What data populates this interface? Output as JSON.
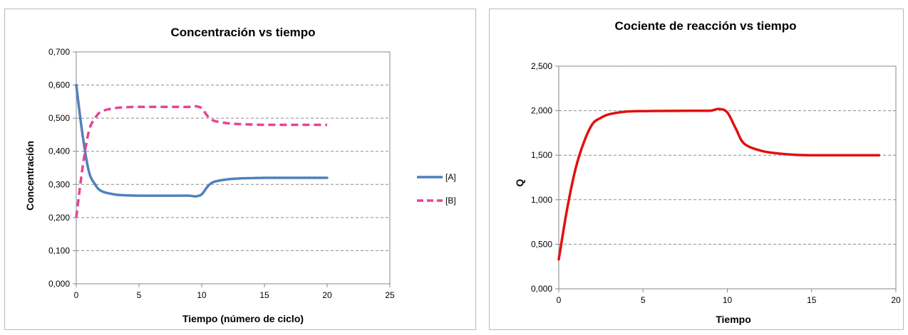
{
  "chart_data": [
    {
      "type": "line",
      "title": "Concentración vs tiempo",
      "xlabel": "Tiempo (número de ciclo)",
      "ylabel": "Concentración",
      "xlim": [
        0,
        25
      ],
      "ylim": [
        0,
        0.7
      ],
      "x_ticks": [
        "0",
        "5",
        "10",
        "15",
        "20",
        "25"
      ],
      "y_ticks": [
        "0,000",
        "0,100",
        "0,200",
        "0,300",
        "0,400",
        "0,500",
        "0,600",
        "0,700"
      ],
      "grid": "horizontal",
      "legend": "right",
      "series": [
        {
          "name": "[A]",
          "color": "#4f81bd",
          "style": "solid",
          "x": [
            0,
            0.5,
            1,
            1.5,
            2,
            3,
            4,
            5,
            6,
            7,
            8,
            9,
            9.5,
            10,
            10.5,
            11,
            12,
            13,
            14,
            15,
            16,
            17,
            18,
            19,
            20
          ],
          "y": [
            0.6,
            0.45,
            0.34,
            0.3,
            0.28,
            0.27,
            0.267,
            0.266,
            0.266,
            0.266,
            0.266,
            0.266,
            0.264,
            0.27,
            0.295,
            0.308,
            0.315,
            0.318,
            0.319,
            0.32,
            0.32,
            0.32,
            0.32,
            0.32,
            0.32
          ]
        },
        {
          "name": "[B]",
          "color": "#e84393",
          "style": "dashed",
          "x": [
            0,
            0.5,
            1,
            1.5,
            2,
            3,
            4,
            5,
            6,
            7,
            8,
            9,
            9.5,
            10,
            10.5,
            11,
            12,
            13,
            14,
            15,
            16,
            17,
            18,
            19,
            20
          ],
          "y": [
            0.2,
            0.35,
            0.46,
            0.5,
            0.52,
            0.53,
            0.533,
            0.534,
            0.534,
            0.534,
            0.534,
            0.534,
            0.536,
            0.53,
            0.505,
            0.492,
            0.485,
            0.482,
            0.481,
            0.48,
            0.48,
            0.48,
            0.48,
            0.48,
            0.48
          ]
        }
      ]
    },
    {
      "type": "line",
      "title": "Cociente de reacción vs tiempo",
      "xlabel": "Tiempo",
      "ylabel": "Q",
      "xlim": [
        0,
        20
      ],
      "ylim": [
        0,
        2.5
      ],
      "x_ticks": [
        "0",
        "5",
        "10",
        "15",
        "20"
      ],
      "y_ticks": [
        "0,000",
        "0,500",
        "1,000",
        "1,500",
        "2,000",
        "2,500"
      ],
      "grid": "horizontal",
      "legend": "none",
      "series": [
        {
          "color": "#e01010",
          "style": "solid",
          "x": [
            0,
            0.5,
            1,
            1.5,
            2,
            2.5,
            3,
            4,
            5,
            6,
            7,
            8,
            9,
            9.5,
            10,
            10.5,
            11,
            12,
            13,
            14,
            15,
            16,
            17,
            18,
            19
          ],
          "y": [
            0.33,
            0.9,
            1.35,
            1.65,
            1.85,
            1.92,
            1.96,
            1.99,
            1.995,
            1.997,
            1.998,
            1.999,
            2.0,
            2.02,
            1.98,
            1.8,
            1.63,
            1.55,
            1.52,
            1.505,
            1.5,
            1.5,
            1.5,
            1.5,
            1.5
          ]
        }
      ]
    }
  ]
}
